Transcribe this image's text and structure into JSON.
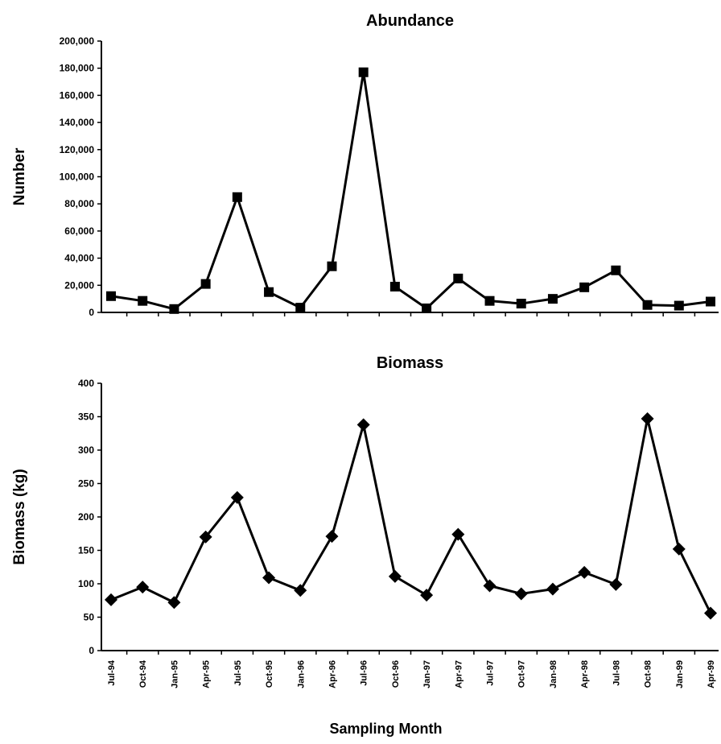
{
  "chart_data": [
    {
      "type": "line",
      "title": "Abundance",
      "ylabel": "Number",
      "xlabel": "",
      "ylim": [
        0,
        200000
      ],
      "yticks": [
        0,
        20000,
        40000,
        60000,
        80000,
        100000,
        120000,
        140000,
        160000,
        180000,
        200000
      ],
      "ytick_labels": [
        "0",
        "20,000",
        "40,000",
        "60,000",
        "80,000",
        "100,000",
        "120,000",
        "140,000",
        "160,000",
        "180,000",
        "200,000"
      ],
      "marker": "square",
      "grid": false,
      "categories": [
        "Jul-94",
        "Oct-94",
        "Jan-95",
        "Apr-95",
        "Jul-95",
        "Oct-95",
        "Jan-96",
        "Apr-96",
        "Jul-96",
        "Oct-96",
        "Jan-97",
        "Apr-97",
        "Jul-97",
        "Oct-97",
        "Jan-98",
        "Apr-98",
        "Jul-98",
        "Oct-98",
        "Jan-99",
        "Apr-99"
      ],
      "series": [
        {
          "values": [
            12000,
            8500,
            2500,
            21000,
            85000,
            15000,
            3500,
            34000,
            177000,
            19000,
            3000,
            25000,
            8500,
            6500,
            10000,
            18500,
            31000,
            5500,
            5000,
            8000
          ]
        }
      ]
    },
    {
      "type": "line",
      "title": "Biomass",
      "ylabel": "Biomass (kg)",
      "xlabel": "Sampling Month",
      "ylim": [
        0,
        400
      ],
      "yticks": [
        0,
        50,
        100,
        150,
        200,
        250,
        300,
        350,
        400
      ],
      "ytick_labels": [
        "0",
        "50",
        "100",
        "150",
        "200",
        "250",
        "300",
        "350",
        "400"
      ],
      "marker": "diamond",
      "grid": false,
      "categories": [
        "Jul-94",
        "Oct-94",
        "Jan-95",
        "Apr-95",
        "Jul-95",
        "Oct-95",
        "Jan-96",
        "Apr-96",
        "Jul-96",
        "Oct-96",
        "Jan-97",
        "Apr-97",
        "Jul-97",
        "Oct-97",
        "Jan-98",
        "Apr-98",
        "Jul-98",
        "Oct-98",
        "Jan-99",
        "Apr-99"
      ],
      "series": [
        {
          "values": [
            76,
            95,
            72,
            170,
            229,
            109,
            90,
            171,
            338,
            111,
            83,
            174,
            97,
            85,
            92,
            117,
            99,
            347,
            152,
            56
          ]
        }
      ]
    }
  ]
}
